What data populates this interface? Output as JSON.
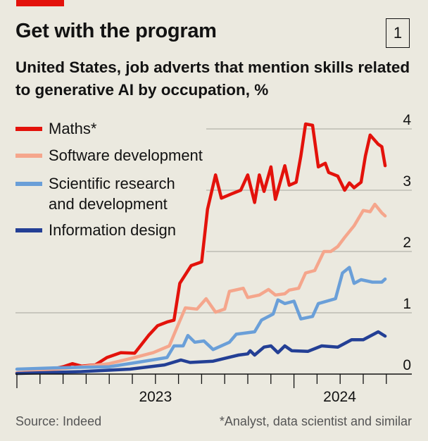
{
  "header": {
    "title": "Get with the program",
    "badge": "1",
    "subtitle": "United States, job adverts that mention skills related to generative AI by occupation, %"
  },
  "footer": {
    "source": "Source: Indeed",
    "note": "*Analyst, data scientist and similar"
  },
  "chart_data": {
    "type": "line",
    "title": "Get with the program",
    "subtitle": "United States, job adverts that mention skills related to generative AI by occupation, %",
    "xlabel": "",
    "ylabel": "",
    "x_ticks": [
      "2023",
      "2024"
    ],
    "y_ticks": [
      "0",
      "1",
      "2",
      "3",
      "4"
    ],
    "xlim": [
      2023.0,
      2024.33
    ],
    "ylim": [
      0,
      4
    ],
    "grid": true,
    "legend": "top-left",
    "series": [
      {
        "name": "Maths*",
        "color": "#e3120b",
        "points": [
          [
            2023.0,
            0.02
          ],
          [
            2023.087,
            0.04
          ],
          [
            2023.167,
            0.12
          ],
          [
            2023.2,
            0.17
          ],
          [
            2023.233,
            0.13
          ],
          [
            2023.283,
            0.15
          ],
          [
            2023.325,
            0.27
          ],
          [
            2023.375,
            0.35
          ],
          [
            2023.425,
            0.34
          ],
          [
            2023.475,
            0.63
          ],
          [
            2023.508,
            0.79
          ],
          [
            2023.542,
            0.85
          ],
          [
            2023.567,
            0.88
          ],
          [
            2023.588,
            1.48
          ],
          [
            2023.629,
            1.77
          ],
          [
            2023.667,
            1.83
          ],
          [
            2023.688,
            2.69
          ],
          [
            2023.717,
            3.25
          ],
          [
            2023.738,
            2.87
          ],
          [
            2023.775,
            2.94
          ],
          [
            2023.808,
            3.0
          ],
          [
            2023.833,
            3.25
          ],
          [
            2023.858,
            2.8
          ],
          [
            2023.875,
            3.25
          ],
          [
            2023.892,
            2.98
          ],
          [
            2023.917,
            3.38
          ],
          [
            2023.933,
            2.85
          ],
          [
            2023.967,
            3.4
          ],
          [
            2023.983,
            3.08
          ],
          [
            2024.008,
            3.13
          ],
          [
            2024.025,
            3.56
          ],
          [
            2024.042,
            4.08
          ],
          [
            2024.067,
            4.06
          ],
          [
            2024.088,
            3.38
          ],
          [
            2024.113,
            3.44
          ],
          [
            2024.125,
            3.29
          ],
          [
            2024.158,
            3.23
          ],
          [
            2024.183,
            3.0
          ],
          [
            2024.2,
            3.12
          ],
          [
            2024.217,
            3.04
          ],
          [
            2024.242,
            3.13
          ],
          [
            2024.258,
            3.56
          ],
          [
            2024.275,
            3.9
          ],
          [
            2024.304,
            3.75
          ],
          [
            2024.317,
            3.71
          ],
          [
            2024.329,
            3.4
          ]
        ]
      },
      {
        "name": "Software development",
        "color": "#f5a68c",
        "points": [
          [
            2023.0,
            0.02
          ],
          [
            2023.233,
            0.12
          ],
          [
            2023.333,
            0.17
          ],
          [
            2023.425,
            0.27
          ],
          [
            2023.492,
            0.35
          ],
          [
            2023.55,
            0.46
          ],
          [
            2023.575,
            0.73
          ],
          [
            2023.608,
            1.08
          ],
          [
            2023.65,
            1.06
          ],
          [
            2023.683,
            1.23
          ],
          [
            2023.717,
            1.01
          ],
          [
            2023.75,
            1.06
          ],
          [
            2023.767,
            1.35
          ],
          [
            2023.817,
            1.4
          ],
          [
            2023.833,
            1.25
          ],
          [
            2023.875,
            1.29
          ],
          [
            2023.908,
            1.38
          ],
          [
            2023.933,
            1.29
          ],
          [
            2023.967,
            1.31
          ],
          [
            2023.983,
            1.37
          ],
          [
            2024.017,
            1.4
          ],
          [
            2024.042,
            1.65
          ],
          [
            2024.075,
            1.69
          ],
          [
            2024.108,
            2.0
          ],
          [
            2024.133,
            2.0
          ],
          [
            2024.158,
            2.08
          ],
          [
            2024.183,
            2.23
          ],
          [
            2024.217,
            2.42
          ],
          [
            2024.25,
            2.67
          ],
          [
            2024.275,
            2.65
          ],
          [
            2024.292,
            2.77
          ],
          [
            2024.317,
            2.63
          ],
          [
            2024.329,
            2.58
          ]
        ]
      },
      {
        "name": "Scientific research and development",
        "color": "#6a9fd8",
        "points": [
          [
            2023.0,
            0.08
          ],
          [
            2023.133,
            0.1
          ],
          [
            2023.333,
            0.12
          ],
          [
            2023.433,
            0.19
          ],
          [
            2023.542,
            0.27
          ],
          [
            2023.567,
            0.46
          ],
          [
            2023.6,
            0.46
          ],
          [
            2023.617,
            0.63
          ],
          [
            2023.642,
            0.52
          ],
          [
            2023.675,
            0.54
          ],
          [
            2023.708,
            0.4
          ],
          [
            2023.767,
            0.52
          ],
          [
            2023.792,
            0.65
          ],
          [
            2023.858,
            0.69
          ],
          [
            2023.883,
            0.88
          ],
          [
            2023.925,
            0.98
          ],
          [
            2023.942,
            1.21
          ],
          [
            2023.967,
            1.15
          ],
          [
            2024.0,
            1.19
          ],
          [
            2024.025,
            0.9
          ],
          [
            2024.067,
            0.94
          ],
          [
            2024.088,
            1.15
          ],
          [
            2024.15,
            1.23
          ],
          [
            2024.175,
            1.65
          ],
          [
            2024.2,
            1.74
          ],
          [
            2024.217,
            1.48
          ],
          [
            2024.242,
            1.54
          ],
          [
            2024.283,
            1.5
          ],
          [
            2024.317,
            1.5
          ],
          [
            2024.329,
            1.55
          ]
        ]
      },
      {
        "name": "Information design",
        "color": "#233f95",
        "points": [
          [
            2023.0,
            0.01
          ],
          [
            2023.233,
            0.04
          ],
          [
            2023.408,
            0.08
          ],
          [
            2023.533,
            0.15
          ],
          [
            2023.592,
            0.23
          ],
          [
            2023.625,
            0.19
          ],
          [
            2023.708,
            0.21
          ],
          [
            2023.8,
            0.31
          ],
          [
            2023.833,
            0.33
          ],
          [
            2023.842,
            0.38
          ],
          [
            2023.858,
            0.31
          ],
          [
            2023.892,
            0.44
          ],
          [
            2023.917,
            0.46
          ],
          [
            2023.942,
            0.35
          ],
          [
            2023.967,
            0.46
          ],
          [
            2023.992,
            0.38
          ],
          [
            2024.05,
            0.37
          ],
          [
            2024.1,
            0.46
          ],
          [
            2024.158,
            0.44
          ],
          [
            2024.208,
            0.56
          ],
          [
            2024.25,
            0.56
          ],
          [
            2024.304,
            0.69
          ],
          [
            2024.329,
            0.62
          ]
        ]
      }
    ]
  }
}
